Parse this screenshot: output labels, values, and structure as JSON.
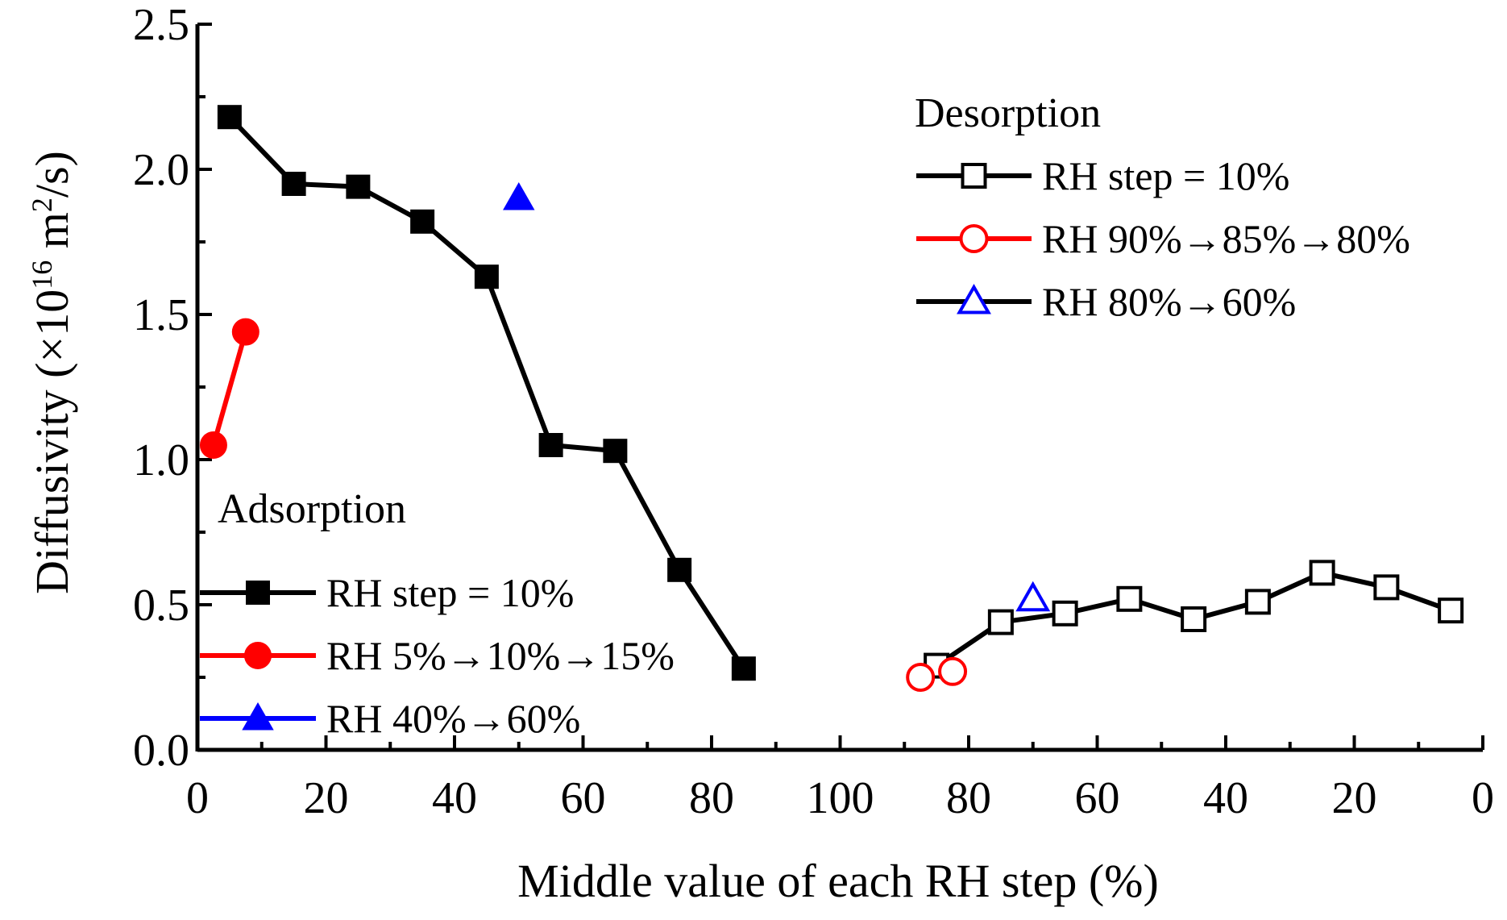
{
  "chart_data": {
    "type": "line",
    "xlabel": "Middle value of each RH step (%)",
    "ylabel": {
      "main": "Diffusivity (×10",
      "sup1": "16",
      "mid": " m",
      "sup2": "2",
      "end": "/s)"
    },
    "ylim": [
      0,
      2.5
    ],
    "y_ticks": [
      "0.0",
      "0.5",
      "1.0",
      "1.5",
      "2.0",
      "2.5"
    ],
    "x_ticks_adsorption": [
      "0",
      "20",
      "40",
      "60",
      "80",
      "100"
    ],
    "x_ticks_desorption": [
      "80",
      "60",
      "40",
      "20",
      "0"
    ],
    "x_axis_note": "left half RH increasing 0→100 (adsorption); right half RH decreasing 100→0 (desorption)",
    "groups": [
      {
        "name": "Adsorption",
        "series": [
          {
            "name": "RH step = 10%",
            "color": "#000000",
            "marker": "square-filled",
            "x": [
              5,
              15,
              25,
              35,
              45,
              55,
              65,
              75,
              85
            ],
            "y": [
              2.18,
              1.95,
              1.94,
              1.82,
              1.63,
              1.05,
              1.03,
              0.62,
              0.28
            ]
          },
          {
            "name": "RH 5%→10%→15%",
            "color": "#ff0000",
            "marker": "circle-filled",
            "x": [
              2.5,
              7.5
            ],
            "y": [
              1.05,
              1.44
            ]
          },
          {
            "name": "RH 40%→60%",
            "color": "#0000ff",
            "marker": "triangle-filled",
            "x": [
              50
            ],
            "y": [
              1.9
            ]
          }
        ]
      },
      {
        "name": "Desorption",
        "series": [
          {
            "name": "RH step = 10%",
            "color": "#000000",
            "marker": "square-open",
            "x": [
              85,
              75,
              65,
              55,
              45,
              35,
              25,
              15,
              5
            ],
            "y": [
              0.29,
              0.44,
              0.47,
              0.52,
              0.45,
              0.51,
              0.61,
              0.56,
              0.48
            ]
          },
          {
            "name": "RH 90%→85%→80%",
            "color": "#ff0000",
            "marker": "circle-open",
            "x": [
              87.5,
              82.5
            ],
            "y": [
              0.25,
              0.27
            ]
          },
          {
            "name": "RH 80%→60%",
            "color": "#0000ff",
            "marker": "triangle-open",
            "x": [
              70
            ],
            "y": [
              0.52
            ]
          }
        ]
      }
    ]
  }
}
